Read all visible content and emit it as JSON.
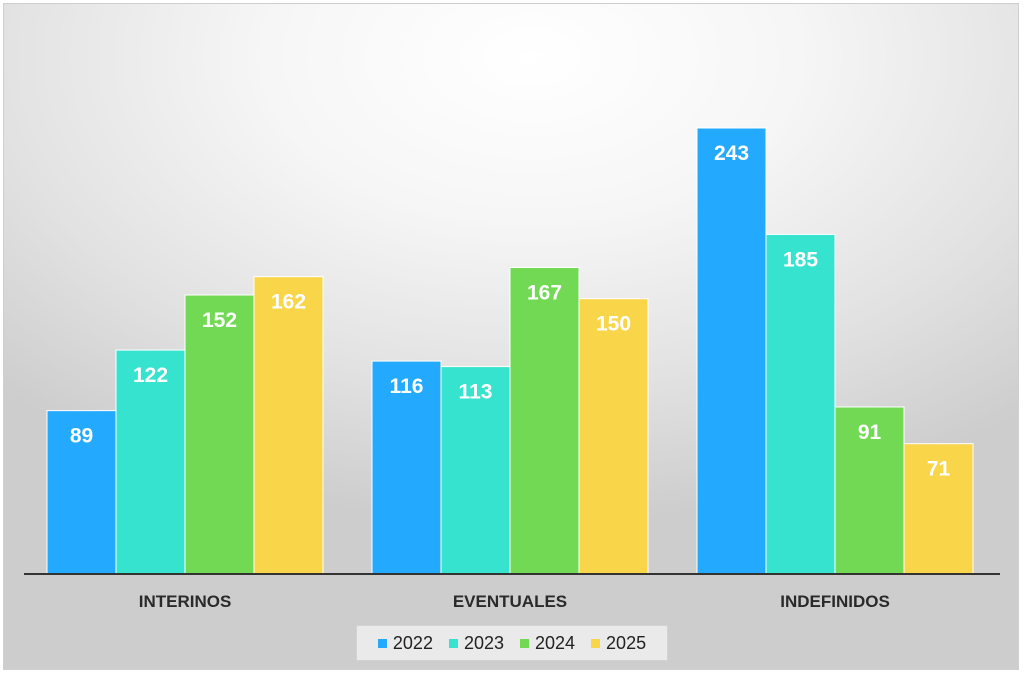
{
  "chart_data": {
    "type": "bar",
    "categories": [
      "INTERINOS",
      "EVENTUALES",
      "INDEFINIDOS"
    ],
    "series": [
      {
        "name": "2022",
        "color": "#23aaff",
        "values": [
          89,
          116,
          243
        ]
      },
      {
        "name": "2023",
        "color": "#36e3cf",
        "values": [
          122,
          113,
          185
        ]
      },
      {
        "name": "2024",
        "color": "#72d954",
        "values": [
          152,
          167,
          91
        ]
      },
      {
        "name": "2025",
        "color": "#f9d54a",
        "values": [
          162,
          150,
          71
        ]
      }
    ],
    "title": "",
    "xlabel": "",
    "ylabel": "",
    "ylim": [
      0,
      243
    ],
    "grid": false,
    "data_labels": true,
    "legend_position": "bottom"
  }
}
